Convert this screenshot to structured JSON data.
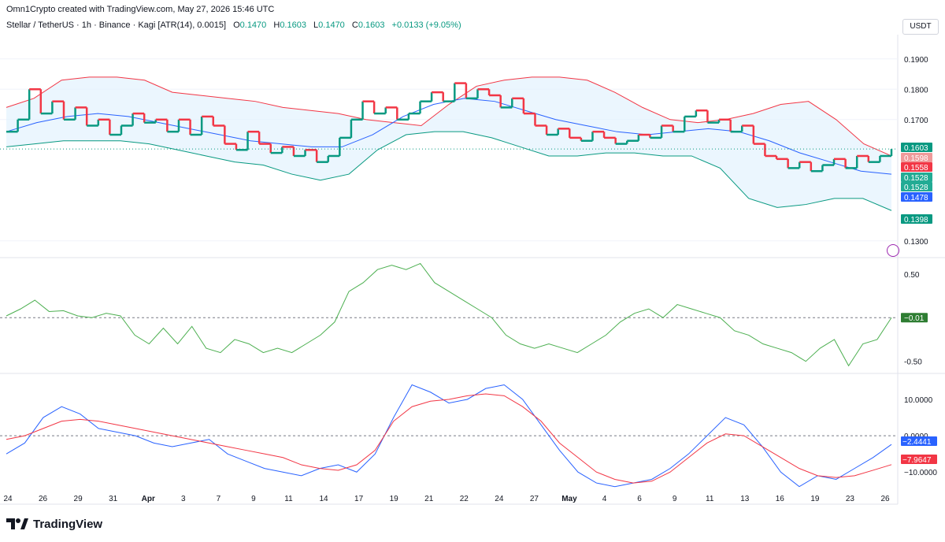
{
  "header": {
    "text": "Omn1Crypto created with TradingView.com, May 27, 2026 15:46 UTC"
  },
  "legend": {
    "symbol": "Stellar / TetherUS · 1h · Binance · Kagi [ATR(14), 0.0015]",
    "o_label": "O",
    "o_value": "0.1470",
    "h_label": "H",
    "h_value": "0.1603",
    "l_label": "L",
    "l_value": "0.1470",
    "c_label": "C",
    "c_value": "0.1603",
    "change": "+0.0133 (+9.05%)"
  },
  "toolbar": {
    "currency": "USDT"
  },
  "branding": {
    "logo_text": "TradingView"
  },
  "colors": {
    "up": "#089981",
    "down": "#f23645",
    "basis": "#2962ff",
    "upper_band": "#f23645",
    "lower_band": "#089981",
    "band_fill": "#e3f2fd",
    "osc": "#4caf50",
    "macd": "#2962ff",
    "signal": "#f23645",
    "last_price": "#089981"
  },
  "chart_data": [
    {
      "type": "kagi",
      "name": "price",
      "ylim": [
        0.125,
        0.198
      ],
      "yticks": [
        "0.1900",
        "0.1800",
        "0.1700",
        "0.1300"
      ],
      "ytick_values": [
        0.19,
        0.18,
        0.17,
        0.13
      ],
      "x_labels": [
        "24",
        "26",
        "29",
        "31",
        "Apr",
        "3",
        "7",
        "9",
        "11",
        "14",
        "17",
        "19",
        "21",
        "22",
        "24",
        "27",
        "May",
        "4",
        "6",
        "9",
        "11",
        "13",
        "16",
        "19",
        "23",
        "26"
      ],
      "close": [
        0.166,
        0.17,
        0.18,
        0.172,
        0.176,
        0.17,
        0.174,
        0.168,
        0.17,
        0.165,
        0.168,
        0.172,
        0.169,
        0.17,
        0.166,
        0.17,
        0.165,
        0.171,
        0.168,
        0.162,
        0.16,
        0.166,
        0.162,
        0.159,
        0.161,
        0.158,
        0.16,
        0.156,
        0.158,
        0.164,
        0.17,
        0.176,
        0.172,
        0.174,
        0.17,
        0.172,
        0.176,
        0.179,
        0.176,
        0.182,
        0.177,
        0.18,
        0.178,
        0.174,
        0.177,
        0.172,
        0.168,
        0.165,
        0.167,
        0.164,
        0.163,
        0.166,
        0.164,
        0.162,
        0.163,
        0.165,
        0.164,
        0.168,
        0.166,
        0.171,
        0.173,
        0.169,
        0.17,
        0.166,
        0.168,
        0.162,
        0.158,
        0.157,
        0.154,
        0.156,
        0.153,
        0.155,
        0.157,
        0.154,
        0.158,
        0.156,
        0.158,
        0.1603
      ],
      "upper_band": [
        0.174,
        0.177,
        0.183,
        0.184,
        0.184,
        0.183,
        0.179,
        0.178,
        0.177,
        0.176,
        0.174,
        0.173,
        0.172,
        0.17,
        0.169,
        0.168,
        0.175,
        0.181,
        0.183,
        0.184,
        0.184,
        0.183,
        0.179,
        0.174,
        0.17,
        0.169,
        0.17,
        0.172,
        0.175,
        0.176,
        0.17,
        0.162,
        0.158
      ],
      "basis": [
        0.166,
        0.169,
        0.171,
        0.172,
        0.171,
        0.169,
        0.167,
        0.165,
        0.163,
        0.162,
        0.161,
        0.161,
        0.165,
        0.171,
        0.175,
        0.177,
        0.176,
        0.173,
        0.17,
        0.168,
        0.166,
        0.165,
        0.166,
        0.167,
        0.166,
        0.163,
        0.159,
        0.156,
        0.153,
        0.152
      ],
      "lower_band": [
        0.161,
        0.162,
        0.163,
        0.163,
        0.163,
        0.162,
        0.16,
        0.158,
        0.156,
        0.155,
        0.152,
        0.15,
        0.152,
        0.16,
        0.165,
        0.166,
        0.166,
        0.164,
        0.161,
        0.158,
        0.158,
        0.159,
        0.159,
        0.158,
        0.158,
        0.154,
        0.144,
        0.141,
        0.142,
        0.144,
        0.144,
        0.14
      ],
      "price_labels": [
        {
          "value": 0.1603,
          "text": "0.1603",
          "color": "#089981"
        },
        {
          "value": 0.1598,
          "text": "0.1598",
          "color": "#ef9a9a"
        },
        {
          "value": 0.1558,
          "text": "0.1558",
          "color": "#f23645"
        },
        {
          "value": 0.1528,
          "text": "0.1528",
          "color": "#22ab94"
        },
        {
          "value": 0.1528,
          "text": "0.1528",
          "color": "#22ab94"
        },
        {
          "value": 0.1478,
          "text": "0.1478",
          "color": "#2962ff"
        },
        {
          "value": 0.1398,
          "text": "0.1398",
          "color": "#089981"
        }
      ]
    },
    {
      "type": "line",
      "name": "oscillator",
      "ylim": [
        -0.62,
        0.66
      ],
      "yticks": [
        "0.50",
        "-0.50"
      ],
      "ytick_values": [
        0.5,
        -0.5
      ],
      "zero_line": 0,
      "values": [
        0.02,
        0.1,
        0.2,
        0.07,
        0.08,
        0.02,
        0.0,
        0.05,
        0.02,
        -0.2,
        -0.3,
        -0.12,
        -0.3,
        -0.1,
        -0.35,
        -0.4,
        -0.25,
        -0.3,
        -0.4,
        -0.35,
        -0.4,
        -0.3,
        -0.2,
        -0.05,
        0.3,
        0.4,
        0.55,
        0.6,
        0.55,
        0.62,
        0.4,
        0.3,
        0.2,
        0.1,
        0.0,
        -0.2,
        -0.3,
        -0.35,
        -0.3,
        -0.35,
        -0.4,
        -0.3,
        -0.2,
        -0.05,
        0.05,
        0.1,
        0.0,
        0.15,
        0.1,
        0.05,
        0.0,
        -0.15,
        -0.2,
        -0.3,
        -0.35,
        -0.4,
        -0.5,
        -0.35,
        -0.25,
        -0.55,
        -0.3,
        -0.25,
        0.0
      ],
      "last_label": "−0.01"
    },
    {
      "type": "line",
      "name": "macd",
      "ylim": [
        -14.5,
        16.5
      ],
      "yticks": [
        "10.0000",
        "0.0000",
        "−10.0000"
      ],
      "ytick_values": [
        10,
        0,
        -10
      ],
      "zero_line": 0,
      "series": [
        {
          "name": "MACD",
          "values": [
            -5,
            -2,
            5,
            8,
            6,
            2,
            1,
            0,
            -2,
            -3,
            -2,
            -1,
            -5,
            -7,
            -9,
            -10,
            -11,
            -9,
            -8,
            -10,
            -5,
            5,
            14,
            12,
            9,
            10,
            13,
            14,
            10,
            3,
            -4,
            -10,
            -13,
            -14,
            -13,
            -12,
            -9,
            -5,
            0,
            5,
            3,
            -3,
            -10,
            -14,
            -11,
            -12,
            -9,
            -6,
            -2.4
          ]
        },
        {
          "name": "Signal",
          "values": [
            -1,
            0,
            2,
            4,
            4.5,
            4,
            3,
            2,
            1,
            0,
            -1,
            -2,
            -3,
            -4,
            -5,
            -6,
            -8,
            -9,
            -9.5,
            -8,
            -4,
            4,
            8,
            9.5,
            10,
            11,
            11.5,
            11,
            8,
            4,
            -2,
            -6,
            -10,
            -12,
            -13,
            -12.5,
            -10,
            -6,
            -2,
            0.5,
            0,
            -3,
            -6,
            -9,
            -11,
            -11.5,
            -11,
            -9.5,
            -7.96
          ]
        }
      ],
      "last_labels": [
        {
          "text": "−2.4441",
          "color": "#2962ff"
        },
        {
          "text": "−7.9647",
          "color": "#f23645"
        }
      ]
    }
  ]
}
